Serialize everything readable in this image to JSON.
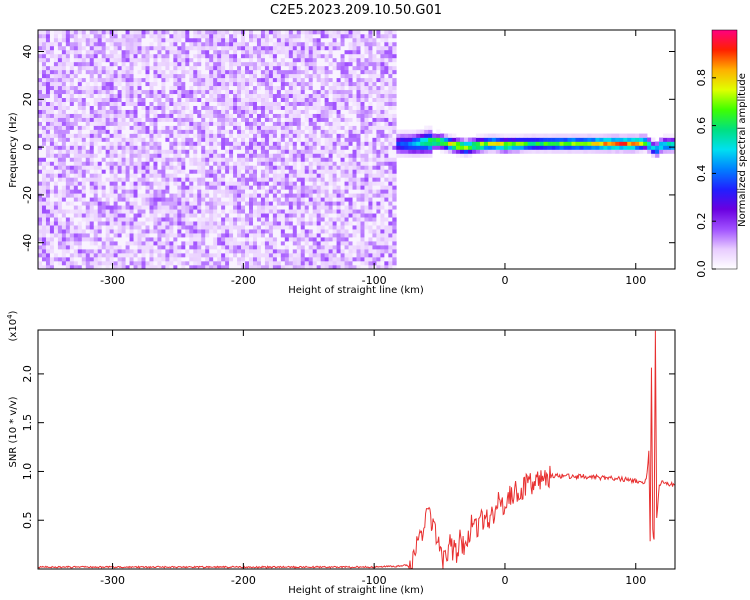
{
  "figure": {
    "title": "C2E5.2023.209.10.50.G01"
  },
  "chart_data": [
    {
      "type": "heatmap",
      "xlabel": "Height of straight line (km)",
      "ylabel": "Frequency (Hz)",
      "xlim": [
        -357,
        130
      ],
      "ylim": [
        -51,
        49
      ],
      "xticks": [
        -300,
        -200,
        -100,
        0,
        100
      ],
      "yticks": [
        -40,
        -20,
        0,
        20,
        40
      ],
      "noise_region_x": [
        -357,
        -83
      ],
      "signal_line": {
        "x": [
          -85,
          -80,
          -70,
          -60,
          -50,
          -40,
          -30,
          -20,
          -10,
          0,
          10,
          20,
          40,
          60,
          80,
          100,
          108,
          112,
          116,
          120,
          130
        ],
        "center_freq_hz": [
          1,
          1.5,
          1.2,
          2,
          2.5,
          1,
          0,
          1,
          1.5,
          1,
          1.2,
          1.5,
          1.5,
          1.5,
          1.5,
          1.5,
          2,
          0,
          -1,
          1,
          1
        ],
        "peak_amplitude": [
          0.3,
          0.35,
          0.45,
          0.6,
          0.7,
          0.75,
          0.72,
          0.7,
          0.72,
          0.75,
          0.7,
          0.6,
          0.65,
          0.72,
          0.85,
          0.88,
          0.6,
          0.45,
          0.5,
          0.55,
          0.55
        ]
      },
      "colorbar": {
        "label": "Normalized spectral amplitude",
        "range": [
          0,
          1
        ],
        "ticks": [
          0.0,
          0.2,
          0.4,
          0.6,
          0.8
        ],
        "tick_labels": [
          "0.0",
          "0.2",
          "0.4",
          "0.6",
          "0.8"
        ],
        "stops": [
          "#ffffff",
          "#e8ccff",
          "#a050ff",
          "#6a00e0",
          "#2020ff",
          "#0080ff",
          "#00e0f0",
          "#00e080",
          "#40ff00",
          "#e0ff00",
          "#ffb000",
          "#ff2000",
          "#ff0080"
        ]
      }
    },
    {
      "type": "line",
      "xlabel": "Height of straight line (km)",
      "ylabel": "SNR (10 * v/v)",
      "multiplier_label": "(x10",
      "multiplier_exp": "4",
      "multiplier_close": ")",
      "xlim": [
        -357,
        130
      ],
      "ylim": [
        0,
        2.45
      ],
      "xticks": [
        -300,
        -200,
        -100,
        0,
        100
      ],
      "yticks": [
        0.5,
        1.0,
        1.5,
        2.0
      ],
      "ytick_labels": [
        "0.5",
        "1.0",
        "1.5",
        "2.0"
      ],
      "color": "#e83030",
      "series": [
        {
          "x": [
            -357,
            -300,
            -200,
            -100,
            -80,
            -72,
            -68,
            -65,
            -62,
            -60,
            -58,
            -55,
            -52,
            -50,
            -48,
            -45,
            -42,
            -40,
            -37,
            -35,
            -32,
            -30,
            -28,
            -25,
            -22,
            -20,
            -18,
            -15,
            -12,
            -10,
            -8,
            -5,
            -2,
            0,
            5,
            10,
            15,
            20,
            25,
            30,
            35,
            40,
            45,
            50,
            60,
            70,
            80,
            90,
            100,
            105,
            108,
            110,
            111,
            112,
            113,
            114,
            115,
            116,
            118,
            120,
            125,
            130
          ],
          "y": [
            0.02,
            0.02,
            0.02,
            0.02,
            0.03,
            0.05,
            0.2,
            0.3,
            0.4,
            0.55,
            0.6,
            0.45,
            0.35,
            0.15,
            0.1,
            0.12,
            0.25,
            0.2,
            0.15,
            0.3,
            0.25,
            0.2,
            0.3,
            0.5,
            0.45,
            0.4,
            0.5,
            0.55,
            0.5,
            0.6,
            0.55,
            0.7,
            0.65,
            0.7,
            0.75,
            0.8,
            0.85,
            0.88,
            0.92,
            0.95,
            0.95,
            0.96,
            0.95,
            0.95,
            0.95,
            0.94,
            0.93,
            0.92,
            0.9,
            0.88,
            0.9,
            1.2,
            0.3,
            2.05,
            0.4,
            0.3,
            2.45,
            0.5,
            0.85,
            0.88,
            0.87,
            0.86
          ]
        }
      ]
    }
  ]
}
